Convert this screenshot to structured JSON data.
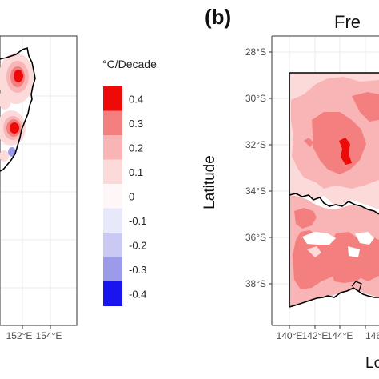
{
  "panel_a": {
    "x_ticks": [
      "152°E",
      "154°E"
    ]
  },
  "legend": {
    "title": "°C/Decade",
    "labels": [
      "0.4",
      "0.3",
      "0.2",
      "0.1",
      "0",
      "-0.1",
      "-0.2",
      "-0.3",
      "-0.4"
    ],
    "colors": [
      "#ef0a0a",
      "#f47f7f",
      "#f9b5b5",
      "#fcdada",
      "#fff7f7",
      "#e8e8fb",
      "#c9c9f4",
      "#9b9bea",
      "#1a14ef"
    ]
  },
  "panel_b": {
    "label": "(b)",
    "title_visible": "Fre",
    "y_axis_title": "Latitude",
    "x_axis_title_visible": "Lo",
    "y_ticks": [
      "28°S",
      "30°S",
      "32°S",
      "34°S",
      "36°S",
      "38°S"
    ],
    "x_ticks": [
      "140°E",
      "142°E",
      "144°E",
      "146"
    ]
  }
}
